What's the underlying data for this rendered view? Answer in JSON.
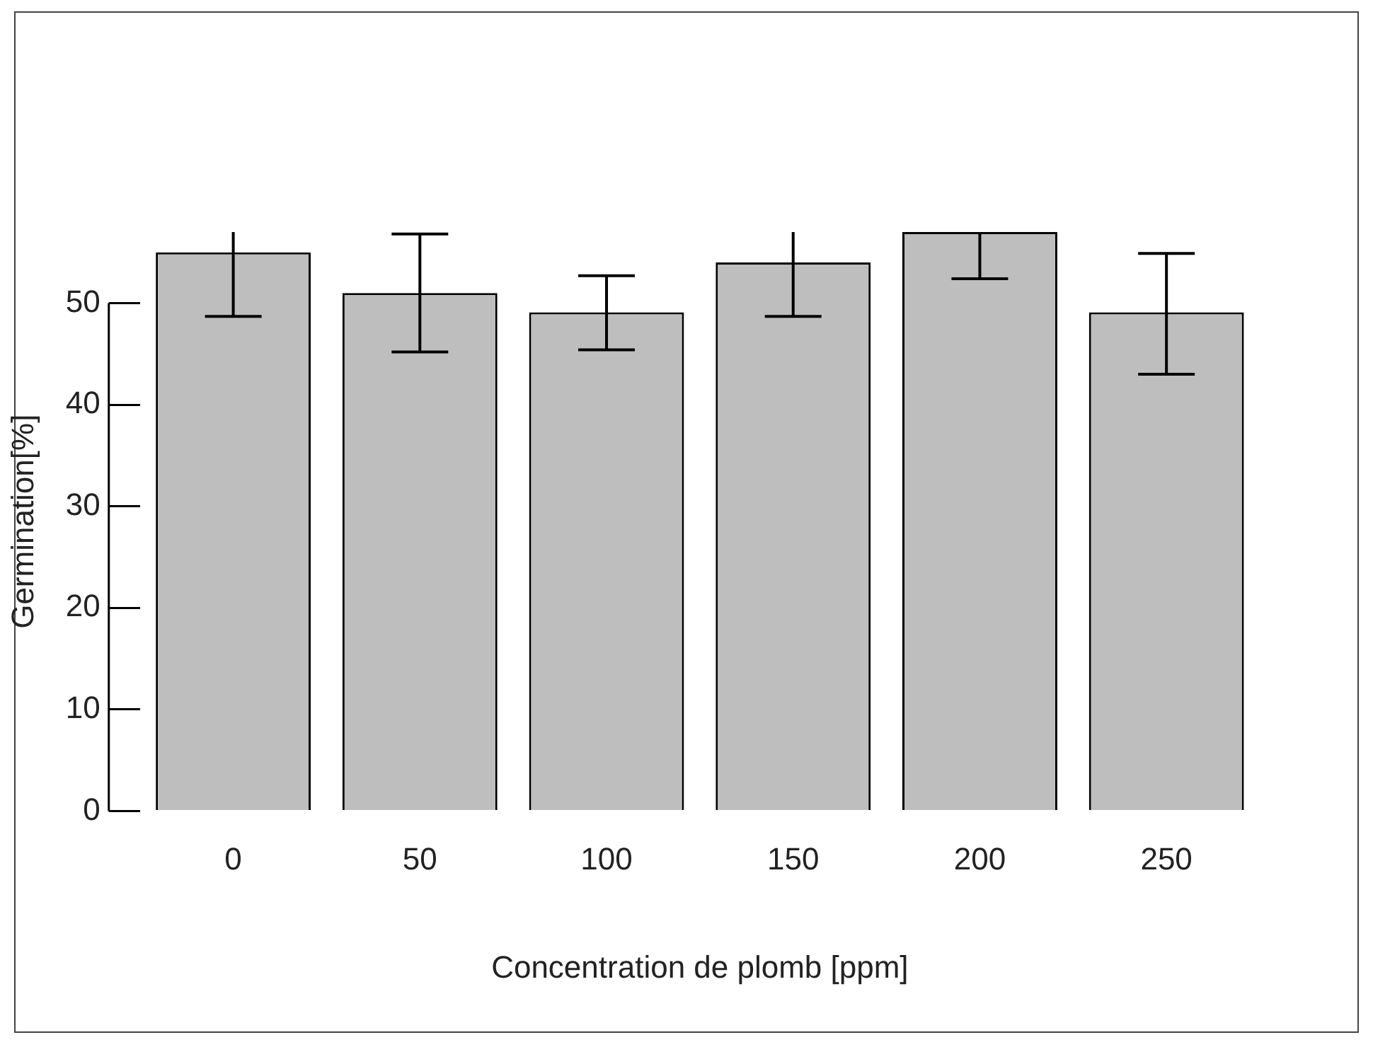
{
  "chart_data": {
    "type": "bar",
    "xlabel": "Concentration de plomb [ppm]",
    "ylabel": "Germination[%]",
    "categories": [
      "0",
      "50",
      "100",
      "150",
      "200",
      "250"
    ],
    "values": [
      55,
      51,
      49.1,
      54,
      57,
      49.1
    ],
    "errors": [
      [
        48.7,
        57
      ],
      [
        45.2,
        56.8
      ],
      [
        45.4,
        52.7
      ],
      [
        48.7,
        57
      ],
      [
        52.4,
        57
      ],
      [
        43,
        54.9
      ]
    ],
    "color": "#bebebe",
    "ylim": [
      0,
      57
    ],
    "yticks": [
      0,
      10,
      20,
      30,
      40,
      50
    ],
    "grid": false,
    "legend": false
  }
}
